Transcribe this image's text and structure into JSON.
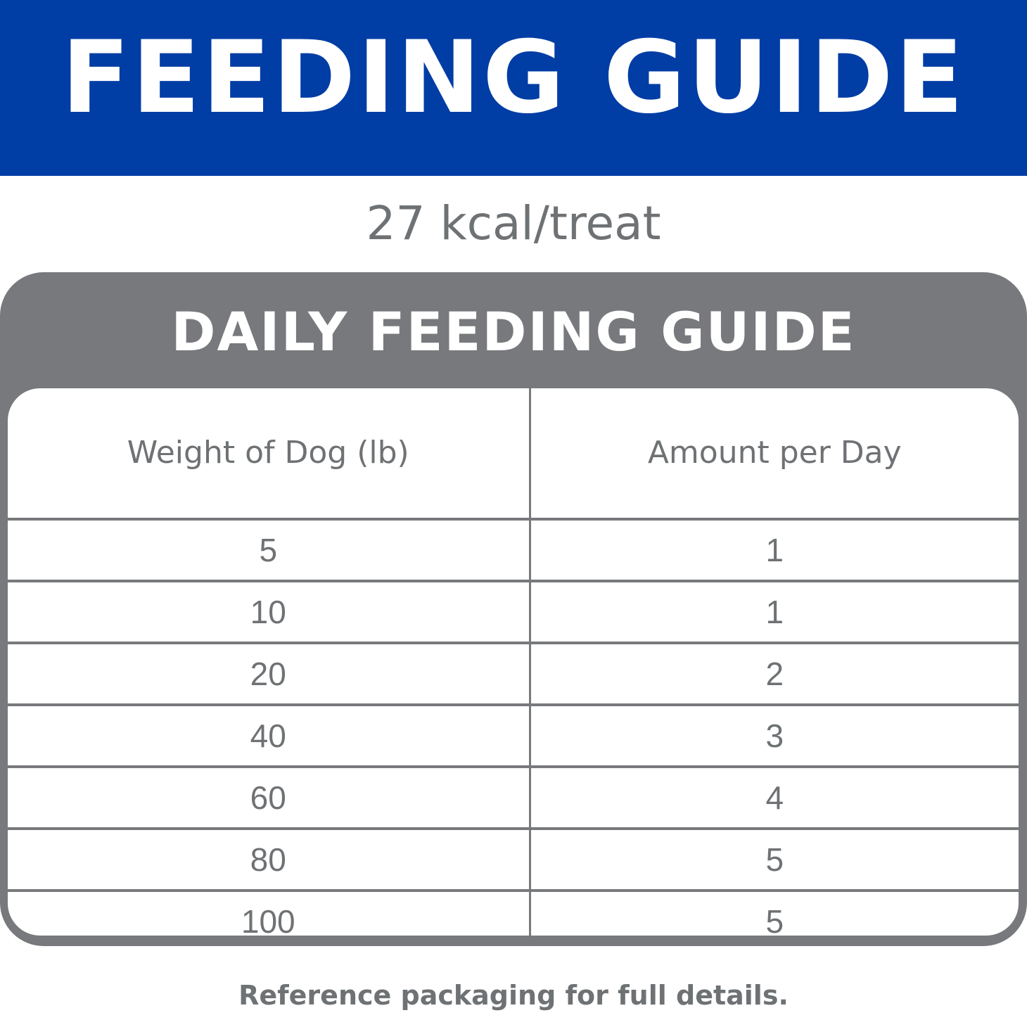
{
  "banner": {
    "title": "FEEDING GUIDE",
    "color": "#003DA5"
  },
  "kcal_text": "27 kcal/treat",
  "card": {
    "title": "DAILY FEEDING GUIDE",
    "color": "#77797C"
  },
  "table": {
    "columns": [
      "Weight of Dog (lb)",
      "Amount per Day"
    ],
    "rows": [
      [
        "5",
        "1"
      ],
      [
        "10",
        "1"
      ],
      [
        "20",
        "2"
      ],
      [
        "40",
        "3"
      ],
      [
        "60",
        "4"
      ],
      [
        "80",
        "5"
      ],
      [
        "100",
        "5"
      ]
    ]
  },
  "footer": "Reference packaging for full details."
}
